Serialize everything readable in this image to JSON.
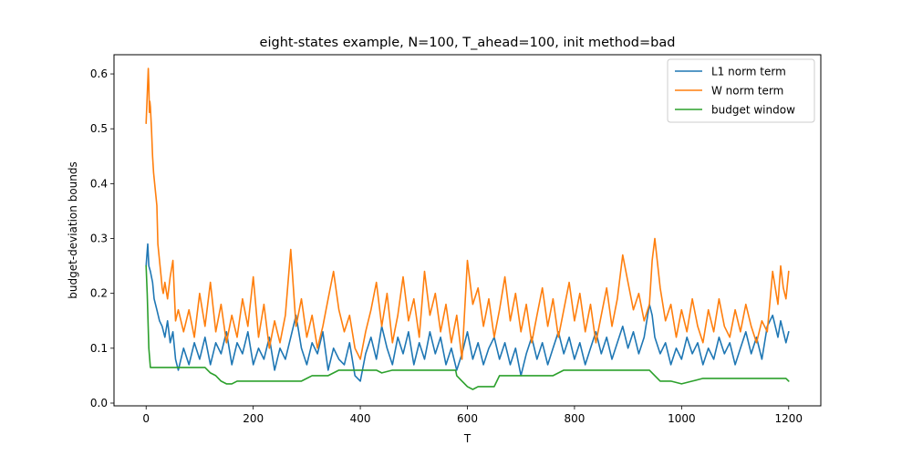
{
  "chart_data": {
    "type": "line",
    "title": "eight-states example, N=100, T_ahead=100, init method=bad",
    "xlabel": "T",
    "ylabel": "budget-deviation bounds",
    "xlim": [
      -60,
      1260
    ],
    "ylim": [
      -0.005,
      0.635
    ],
    "x_ticks": [
      0,
      200,
      400,
      600,
      800,
      1000,
      1200
    ],
    "x_tick_labels": [
      "0",
      "200",
      "400",
      "600",
      "800",
      "1000",
      "1200"
    ],
    "y_ticks": [
      0.0,
      0.1,
      0.2,
      0.3,
      0.4,
      0.5,
      0.6
    ],
    "y_tick_labels": [
      "0.0",
      "0.1",
      "0.2",
      "0.3",
      "0.4",
      "0.5",
      "0.6"
    ],
    "grid": false,
    "legend_position": "top-right",
    "series": [
      {
        "name": "L1 norm term",
        "color": "#1f77b4",
        "x": [
          0,
          3,
          5,
          8,
          12,
          15,
          20,
          25,
          30,
          35,
          40,
          45,
          50,
          55,
          60,
          70,
          80,
          90,
          100,
          110,
          120,
          130,
          140,
          150,
          160,
          170,
          180,
          190,
          200,
          210,
          220,
          230,
          240,
          250,
          260,
          270,
          280,
          290,
          300,
          310,
          320,
          330,
          340,
          350,
          360,
          370,
          380,
          390,
          400,
          410,
          420,
          430,
          440,
          450,
          460,
          470,
          480,
          490,
          500,
          510,
          520,
          530,
          540,
          550,
          560,
          570,
          580,
          590,
          600,
          610,
          620,
          630,
          640,
          650,
          660,
          670,
          680,
          690,
          700,
          710,
          720,
          730,
          740,
          750,
          760,
          770,
          780,
          790,
          800,
          810,
          820,
          830,
          840,
          850,
          860,
          870,
          880,
          890,
          900,
          910,
          920,
          930,
          940,
          945,
          950,
          960,
          970,
          980,
          990,
          1000,
          1010,
          1020,
          1030,
          1040,
          1050,
          1060,
          1070,
          1080,
          1090,
          1100,
          1110,
          1120,
          1130,
          1140,
          1150,
          1160,
          1170,
          1180,
          1185,
          1190,
          1195,
          1200
        ],
        "y": [
          0.25,
          0.29,
          0.25,
          0.24,
          0.22,
          0.19,
          0.17,
          0.15,
          0.14,
          0.12,
          0.15,
          0.11,
          0.13,
          0.08,
          0.06,
          0.1,
          0.07,
          0.11,
          0.08,
          0.12,
          0.07,
          0.11,
          0.09,
          0.13,
          0.07,
          0.11,
          0.09,
          0.13,
          0.07,
          0.1,
          0.08,
          0.12,
          0.06,
          0.1,
          0.08,
          0.12,
          0.16,
          0.1,
          0.07,
          0.11,
          0.09,
          0.13,
          0.06,
          0.1,
          0.08,
          0.07,
          0.11,
          0.05,
          0.04,
          0.09,
          0.12,
          0.08,
          0.14,
          0.1,
          0.07,
          0.12,
          0.09,
          0.13,
          0.07,
          0.11,
          0.08,
          0.13,
          0.09,
          0.12,
          0.07,
          0.1,
          0.06,
          0.09,
          0.13,
          0.08,
          0.11,
          0.07,
          0.1,
          0.12,
          0.08,
          0.11,
          0.07,
          0.1,
          0.05,
          0.09,
          0.12,
          0.08,
          0.11,
          0.07,
          0.1,
          0.13,
          0.09,
          0.12,
          0.08,
          0.11,
          0.07,
          0.1,
          0.13,
          0.09,
          0.12,
          0.08,
          0.11,
          0.14,
          0.1,
          0.13,
          0.09,
          0.12,
          0.18,
          0.16,
          0.12,
          0.09,
          0.11,
          0.07,
          0.1,
          0.08,
          0.12,
          0.09,
          0.11,
          0.07,
          0.1,
          0.08,
          0.12,
          0.09,
          0.11,
          0.07,
          0.1,
          0.13,
          0.09,
          0.12,
          0.08,
          0.14,
          0.16,
          0.12,
          0.15,
          0.13,
          0.11,
          0.13
        ]
      },
      {
        "name": "W norm term",
        "color": "#ff7f0e",
        "x": [
          0,
          2,
          4,
          5,
          6,
          7,
          8,
          10,
          12,
          14,
          16,
          18,
          20,
          22,
          24,
          26,
          28,
          30,
          32,
          35,
          40,
          45,
          50,
          55,
          60,
          70,
          80,
          90,
          100,
          110,
          120,
          130,
          140,
          150,
          160,
          170,
          180,
          190,
          200,
          210,
          220,
          230,
          240,
          250,
          260,
          270,
          280,
          290,
          300,
          310,
          320,
          330,
          340,
          350,
          360,
          370,
          380,
          390,
          400,
          410,
          420,
          430,
          440,
          450,
          460,
          470,
          480,
          490,
          500,
          510,
          520,
          530,
          540,
          550,
          560,
          570,
          580,
          590,
          600,
          610,
          620,
          630,
          640,
          650,
          660,
          670,
          680,
          690,
          700,
          710,
          720,
          730,
          740,
          750,
          760,
          770,
          780,
          790,
          800,
          810,
          820,
          830,
          840,
          850,
          860,
          870,
          880,
          890,
          900,
          910,
          920,
          930,
          940,
          945,
          950,
          960,
          970,
          980,
          990,
          1000,
          1010,
          1020,
          1030,
          1040,
          1050,
          1060,
          1070,
          1080,
          1090,
          1100,
          1110,
          1120,
          1130,
          1140,
          1150,
          1160,
          1170,
          1180,
          1185,
          1190,
          1195,
          1200
        ],
        "y": [
          0.51,
          0.56,
          0.61,
          0.58,
          0.53,
          0.55,
          0.54,
          0.5,
          0.45,
          0.42,
          0.4,
          0.38,
          0.36,
          0.29,
          0.27,
          0.25,
          0.23,
          0.21,
          0.2,
          0.22,
          0.19,
          0.23,
          0.26,
          0.15,
          0.17,
          0.13,
          0.17,
          0.12,
          0.2,
          0.14,
          0.22,
          0.13,
          0.18,
          0.11,
          0.16,
          0.12,
          0.19,
          0.14,
          0.23,
          0.12,
          0.18,
          0.1,
          0.15,
          0.11,
          0.16,
          0.28,
          0.14,
          0.19,
          0.12,
          0.16,
          0.1,
          0.14,
          0.19,
          0.24,
          0.17,
          0.13,
          0.16,
          0.1,
          0.08,
          0.13,
          0.17,
          0.22,
          0.14,
          0.2,
          0.11,
          0.16,
          0.23,
          0.15,
          0.19,
          0.12,
          0.24,
          0.16,
          0.2,
          0.13,
          0.18,
          0.11,
          0.16,
          0.08,
          0.26,
          0.18,
          0.21,
          0.14,
          0.19,
          0.12,
          0.17,
          0.23,
          0.15,
          0.2,
          0.13,
          0.18,
          0.11,
          0.16,
          0.21,
          0.14,
          0.19,
          0.12,
          0.17,
          0.22,
          0.15,
          0.2,
          0.13,
          0.18,
          0.11,
          0.16,
          0.21,
          0.14,
          0.19,
          0.27,
          0.22,
          0.17,
          0.2,
          0.15,
          0.18,
          0.26,
          0.3,
          0.21,
          0.15,
          0.18,
          0.12,
          0.17,
          0.13,
          0.19,
          0.14,
          0.11,
          0.17,
          0.13,
          0.19,
          0.14,
          0.12,
          0.17,
          0.13,
          0.18,
          0.14,
          0.11,
          0.15,
          0.13,
          0.24,
          0.18,
          0.25,
          0.21,
          0.19,
          0.24
        ]
      },
      {
        "name": "budget window",
        "color": "#2ca02c",
        "x": [
          0,
          2,
          5,
          8,
          40,
          100,
          110,
          120,
          130,
          140,
          150,
          160,
          170,
          180,
          190,
          200,
          260,
          270,
          280,
          290,
          300,
          310,
          320,
          330,
          340,
          350,
          360,
          400,
          410,
          420,
          430,
          440,
          460,
          500,
          560,
          570,
          578,
          580,
          590,
          600,
          610,
          620,
          650,
          660,
          700,
          760,
          770,
          780,
          800,
          940,
          950,
          960,
          980,
          1000,
          1020,
          1040,
          1060,
          1100,
          1140,
          1160,
          1180,
          1195,
          1200
        ],
        "y": [
          0.25,
          0.2,
          0.1,
          0.065,
          0.065,
          0.065,
          0.065,
          0.055,
          0.05,
          0.04,
          0.035,
          0.035,
          0.04,
          0.04,
          0.04,
          0.04,
          0.04,
          0.04,
          0.04,
          0.04,
          0.045,
          0.05,
          0.05,
          0.05,
          0.05,
          0.055,
          0.06,
          0.06,
          0.06,
          0.06,
          0.06,
          0.055,
          0.06,
          0.06,
          0.06,
          0.06,
          0.06,
          0.05,
          0.04,
          0.03,
          0.025,
          0.03,
          0.03,
          0.05,
          0.05,
          0.05,
          0.055,
          0.06,
          0.06,
          0.06,
          0.05,
          0.04,
          0.04,
          0.035,
          0.04,
          0.045,
          0.045,
          0.045,
          0.045,
          0.045,
          0.045,
          0.045,
          0.04
        ]
      }
    ]
  }
}
